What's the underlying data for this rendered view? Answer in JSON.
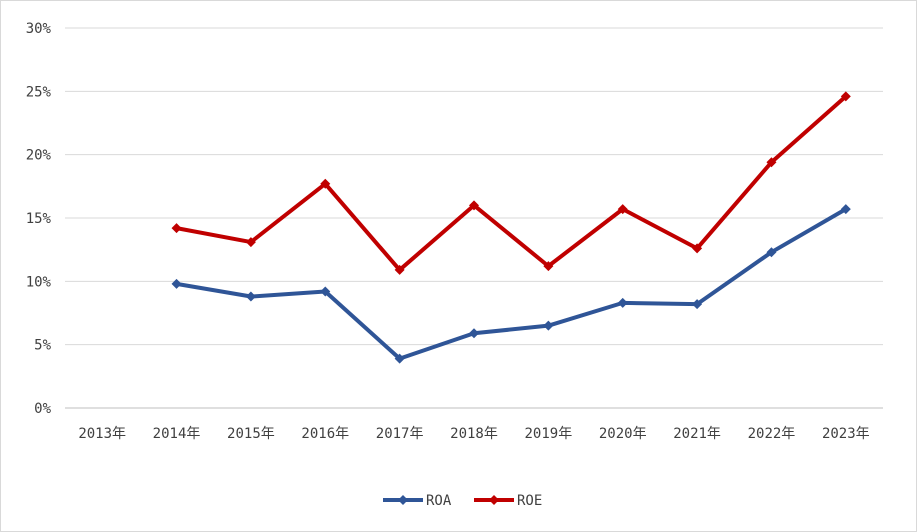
{
  "chart_data": {
    "type": "line",
    "categories": [
      "2013年",
      "2014年",
      "2015年",
      "2016年",
      "2017年",
      "2018年",
      "2019年",
      "2020年",
      "2021年",
      "2022年",
      "2023年"
    ],
    "y_ticks": [
      "0%",
      "5%",
      "10%",
      "15%",
      "20%",
      "25%",
      "30%"
    ],
    "ylim": [
      0,
      30
    ],
    "y_unit": "%",
    "grid": true,
    "legend_position": "bottom",
    "series": [
      {
        "name": "ROA",
        "color": "#2F5597",
        "marker": "diamond",
        "values": [
          null,
          9.8,
          8.8,
          9.2,
          3.9,
          5.9,
          6.5,
          8.3,
          8.2,
          12.3,
          15.7
        ]
      },
      {
        "name": "ROE",
        "color": "#C00000",
        "marker": "diamond",
        "values": [
          null,
          14.2,
          13.1,
          17.7,
          10.9,
          16.0,
          11.2,
          15.7,
          12.6,
          19.4,
          24.6
        ]
      }
    ]
  }
}
